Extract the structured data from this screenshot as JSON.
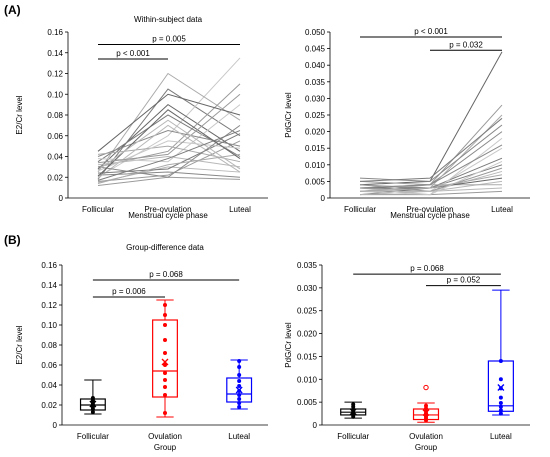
{
  "panels": {
    "a": "(A)",
    "b": "(B)"
  },
  "chart_data": [
    {
      "type": "line",
      "title": "Within-subject data",
      "xlabel": "Menstrual cycle phase",
      "ylabel": "E2/Cr level",
      "categories": [
        "Follicular",
        "Pre-ovulation",
        "Luteal"
      ],
      "ylim": [
        0,
        0.16
      ],
      "yticks": [
        "0",
        "0.02",
        "0.04",
        "0.06",
        "0.08",
        "0.10",
        "0.12",
        "0.14",
        "0.16"
      ],
      "line_values": [
        [
          0.012,
          0.02,
          0.018
        ],
        [
          0.015,
          0.03,
          0.025
        ],
        [
          0.018,
          0.105,
          0.06
        ],
        [
          0.02,
          0.06,
          0.135
        ],
        [
          0.022,
          0.025,
          0.02
        ],
        [
          0.025,
          0.12,
          0.075
        ],
        [
          0.028,
          0.09,
          0.045
        ],
        [
          0.03,
          0.045,
          0.11
        ],
        [
          0.032,
          0.04,
          0.03
        ],
        [
          0.035,
          0.08,
          0.04
        ],
        [
          0.038,
          0.035,
          0.09
        ],
        [
          0.04,
          0.065,
          0.05
        ],
        [
          0.042,
          0.05,
          0.035
        ],
        [
          0.045,
          0.1,
          0.08
        ],
        [
          0.016,
          0.022,
          0.055
        ],
        [
          0.019,
          0.07,
          0.025
        ],
        [
          0.024,
          0.028,
          0.062
        ],
        [
          0.026,
          0.055,
          0.048
        ],
        [
          0.03,
          0.02,
          0.07
        ],
        [
          0.014,
          0.032,
          0.042
        ],
        [
          0.021,
          0.085,
          0.038
        ],
        [
          0.034,
          0.042,
          0.1
        ],
        [
          0.027,
          0.075,
          0.028
        ],
        [
          0.017,
          0.038,
          0.065
        ]
      ],
      "annotations": [
        {
          "label": "p = 0.005",
          "from": 0,
          "to": 2,
          "y": 0.148
        },
        {
          "label": "p < 0.001",
          "from": 0,
          "to": 1,
          "y": 0.134
        }
      ]
    },
    {
      "type": "line",
      "xlabel": "Menstrual cycle phase",
      "ylabel": "PdG/Cr level",
      "categories": [
        "Follicular",
        "Pre-ovulation",
        "Luteal"
      ],
      "ylim": [
        0,
        0.05
      ],
      "yticks": [
        "0",
        "0.005",
        "0.010",
        "0.015",
        "0.020",
        "0.025",
        "0.030",
        "0.035",
        "0.040",
        "0.045",
        "0.050"
      ],
      "line_values": [
        [
          0.001,
          0.001,
          0.002
        ],
        [
          0.002,
          0.002,
          0.005
        ],
        [
          0.002,
          0.003,
          0.01
        ],
        [
          0.003,
          0.002,
          0.015
        ],
        [
          0.003,
          0.004,
          0.02
        ],
        [
          0.004,
          0.003,
          0.025
        ],
        [
          0.004,
          0.005,
          0.044
        ],
        [
          0.005,
          0.004,
          0.028
        ],
        [
          0.002,
          0.002,
          0.008
        ],
        [
          0.001,
          0.003,
          0.012
        ],
        [
          0.003,
          0.001,
          0.018
        ],
        [
          0.006,
          0.005,
          0.022
        ],
        [
          0.002,
          0.004,
          0.004
        ],
        [
          0.003,
          0.003,
          0.006
        ],
        [
          0.004,
          0.002,
          0.009
        ],
        [
          0.001,
          0.002,
          0.003
        ],
        [
          0.005,
          0.006,
          0.024
        ],
        [
          0.002,
          0.001,
          0.011
        ],
        [
          0.003,
          0.004,
          0.016
        ],
        [
          0.002,
          0.003,
          0.007
        ]
      ],
      "annotations": [
        {
          "label": "p < 0.001",
          "from": 0,
          "to": 2,
          "y": 0.0485
        },
        {
          "label": "p = 0.032",
          "from": 1,
          "to": 2,
          "y": 0.0445
        }
      ]
    },
    {
      "type": "box",
      "title": "Group-difference data",
      "xlabel": "Group",
      "ylabel": "E2/Cr level",
      "categories": [
        "Follicular",
        "Ovulation",
        "Luteal"
      ],
      "ylim": [
        0,
        0.16
      ],
      "yticks": [
        "0",
        "0.02",
        "0.04",
        "0.06",
        "0.08",
        "0.10",
        "0.12",
        "0.14",
        "0.16"
      ],
      "colors": [
        "#000000",
        "#ff0000",
        "#0000ff"
      ],
      "boxes": [
        {
          "min": 0.011,
          "q1": 0.015,
          "median": 0.02,
          "q3": 0.026,
          "max": 0.045,
          "mean": 0.021,
          "points": [
            0.013,
            0.016,
            0.018,
            0.021,
            0.024,
            0.025,
            0.027
          ]
        },
        {
          "min": 0.008,
          "q1": 0.028,
          "median": 0.054,
          "q3": 0.105,
          "max": 0.125,
          "mean": 0.063,
          "points": [
            0.012,
            0.03,
            0.038,
            0.045,
            0.052,
            0.06,
            0.072,
            0.085,
            0.1,
            0.11,
            0.12
          ]
        },
        {
          "min": 0.016,
          "q1": 0.023,
          "median": 0.031,
          "q3": 0.047,
          "max": 0.065,
          "mean": 0.035,
          "points": [
            0.018,
            0.022,
            0.026,
            0.03,
            0.034,
            0.039,
            0.044,
            0.05,
            0.058,
            0.064
          ]
        }
      ],
      "annotations": [
        {
          "label": "p = 0.068",
          "from": 0,
          "to": 2,
          "y": 0.145
        },
        {
          "label": "p = 0.006",
          "from": 0,
          "to": 1,
          "y": 0.128
        }
      ]
    },
    {
      "type": "box",
      "xlabel": "Group",
      "ylabel": "PdG/Cr level",
      "categories": [
        "Follicular",
        "Ovulation",
        "Luteal"
      ],
      "ylim": [
        0,
        0.035
      ],
      "yticks": [
        "0",
        "0.005",
        "0.010",
        "0.015",
        "0.020",
        "0.025",
        "0.030",
        "0.035"
      ],
      "colors": [
        "#000000",
        "#ff0000",
        "#0000ff"
      ],
      "boxes": [
        {
          "min": 0.0015,
          "q1": 0.0022,
          "median": 0.0028,
          "q3": 0.0035,
          "max": 0.005,
          "mean": 0.0029,
          "points": [
            0.0018,
            0.0022,
            0.0025,
            0.0028,
            0.0031,
            0.0034,
            0.004,
            0.0045
          ]
        },
        {
          "min": 0.0006,
          "q1": 0.0012,
          "median": 0.0022,
          "q3": 0.0035,
          "max": 0.0048,
          "mean": 0.0027,
          "points": [
            0.001,
            0.0014,
            0.0018,
            0.0022,
            0.0026,
            0.0031,
            0.0036,
            0.0042
          ],
          "outliers": [
            0.0082
          ]
        },
        {
          "min": 0.0022,
          "q1": 0.003,
          "median": 0.0042,
          "q3": 0.014,
          "max": 0.0295,
          "mean": 0.0082,
          "points": [
            0.0025,
            0.0032,
            0.004,
            0.0048,
            0.006,
            0.008,
            0.01,
            0.014
          ]
        },
        {
          "note": "-"
        }
      ],
      "annotations": [
        {
          "label": "p = 0.068",
          "from": 0,
          "to": 2,
          "y": 0.033
        },
        {
          "label": "p = 0.052",
          "from": 1,
          "to": 2,
          "y": 0.0305
        }
      ]
    }
  ]
}
